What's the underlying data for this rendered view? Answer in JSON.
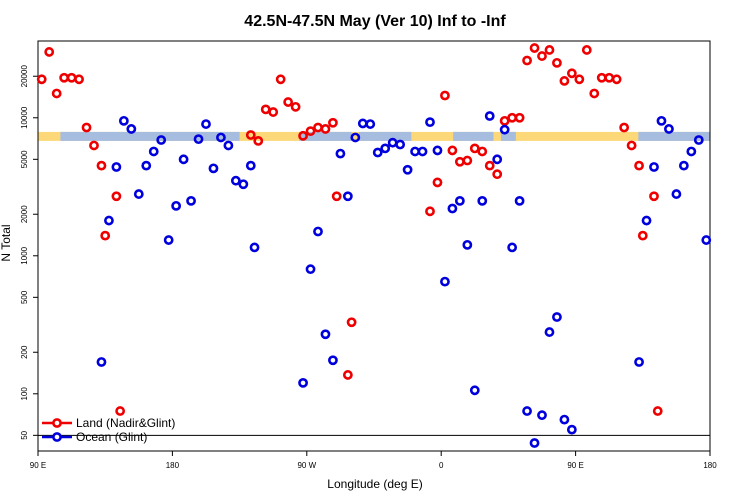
{
  "chart_data": {
    "type": "scatter",
    "title": "42.5N-47.5N May (Ver 10)   Inf to -Inf",
    "xlabel": "Longitude (deg E)",
    "ylabel": "N Total",
    "x_ticks": [
      {
        "value": 90,
        "label": "90 E"
      },
      {
        "value": 180,
        "label": "180"
      },
      {
        "value": 270,
        "label": "90 W"
      },
      {
        "value": 360,
        "label": "0"
      },
      {
        "value": 450,
        "label": "90 E"
      },
      {
        "value": 540,
        "label": "180"
      }
    ],
    "xlim": [
      90,
      540
    ],
    "y_scale": "log",
    "ylim": [
      40,
      40000
    ],
    "y_ticks": [
      50,
      100,
      200,
      500,
      1000,
      2000,
      5000,
      10000,
      20000
    ],
    "colors": {
      "land": "#ee0000",
      "ocean": "#0000dd",
      "band_ocean": "#a7bde0",
      "band_land": "#fdd878",
      "reference_line": "#000000"
    },
    "band": {
      "y_low": 6800,
      "y_high": 7900
    },
    "reference_line_y": 50,
    "legend": {
      "position": "bottom-left",
      "entries": [
        {
          "series": "land",
          "label": "Land (Nadir&Glint)"
        },
        {
          "series": "ocean",
          "label": "Ocean (Glint)"
        }
      ]
    },
    "series": [
      {
        "name": "Land (Nadir&Glint)",
        "key": "land",
        "points": [
          [
            92.5,
            19000
          ],
          [
            97.5,
            30000
          ],
          [
            102.5,
            15000
          ],
          [
            107.5,
            19500
          ],
          [
            112.5,
            19500
          ],
          [
            117.5,
            19000
          ],
          [
            122.5,
            8500
          ],
          [
            127.5,
            6300
          ],
          [
            132.5,
            4500
          ],
          [
            135.0,
            1400
          ],
          [
            142.5,
            2700
          ],
          [
            145.0,
            75
          ],
          [
            232.5,
            7500
          ],
          [
            237.5,
            6800
          ],
          [
            242.5,
            11500
          ],
          [
            247.5,
            11000
          ],
          [
            252.5,
            19000
          ],
          [
            257.5,
            13000
          ],
          [
            262.5,
            12000
          ],
          [
            267.5,
            7400
          ],
          [
            272.5,
            8000
          ],
          [
            277.5,
            8500
          ],
          [
            282.5,
            8300
          ],
          [
            287.5,
            9200
          ],
          [
            290.0,
            2700
          ],
          [
            297.5,
            137
          ],
          [
            300.0,
            330
          ],
          [
            352.5,
            2100
          ],
          [
            357.5,
            3400
          ],
          [
            362.5,
            14500
          ],
          [
            367.5,
            5800
          ],
          [
            372.5,
            4800
          ],
          [
            377.5,
            4900
          ],
          [
            382.5,
            6000
          ],
          [
            387.5,
            5700
          ],
          [
            392.5,
            4500
          ],
          [
            397.5,
            3900
          ],
          [
            402.5,
            9500
          ],
          [
            407.5,
            10000
          ],
          [
            412.5,
            10000
          ],
          [
            417.5,
            26000
          ],
          [
            422.5,
            32000
          ],
          [
            427.5,
            28000
          ],
          [
            432.5,
            31000
          ],
          [
            437.5,
            25000
          ],
          [
            442.5,
            18500
          ],
          [
            447.5,
            21000
          ],
          [
            452.5,
            19000
          ],
          [
            457.5,
            31000
          ],
          [
            462.5,
            15000
          ],
          [
            467.5,
            19500
          ],
          [
            472.5,
            19500
          ],
          [
            477.5,
            19000
          ],
          [
            482.5,
            8500
          ],
          [
            487.5,
            6300
          ],
          [
            492.5,
            4500
          ],
          [
            495.0,
            1400
          ],
          [
            502.5,
            2700
          ],
          [
            505.0,
            75
          ]
        ]
      },
      {
        "name": "Ocean (Glint)",
        "key": "ocean",
        "points": [
          [
            132.5,
            170
          ],
          [
            137.5,
            1800
          ],
          [
            142.5,
            4400
          ],
          [
            147.5,
            9500
          ],
          [
            152.5,
            8300
          ],
          [
            157.5,
            2800
          ],
          [
            162.5,
            4500
          ],
          [
            167.5,
            5700
          ],
          [
            172.5,
            6900
          ],
          [
            177.5,
            1300
          ],
          [
            182.5,
            2300
          ],
          [
            187.5,
            5000
          ],
          [
            192.5,
            2500
          ],
          [
            197.5,
            7000
          ],
          [
            202.5,
            9000
          ],
          [
            207.5,
            4300
          ],
          [
            212.5,
            7200
          ],
          [
            217.5,
            6300
          ],
          [
            222.5,
            3500
          ],
          [
            227.5,
            3300
          ],
          [
            232.5,
            4500
          ],
          [
            235.0,
            1150
          ],
          [
            267.5,
            120
          ],
          [
            272.5,
            800
          ],
          [
            277.5,
            1500
          ],
          [
            282.5,
            270
          ],
          [
            287.5,
            175
          ],
          [
            292.5,
            5500
          ],
          [
            297.5,
            2700
          ],
          [
            302.5,
            7200
          ],
          [
            307.5,
            9100
          ],
          [
            312.5,
            9000
          ],
          [
            317.5,
            5600
          ],
          [
            322.5,
            6000
          ],
          [
            327.5,
            6600
          ],
          [
            332.5,
            6400
          ],
          [
            337.5,
            4200
          ],
          [
            342.5,
            5700
          ],
          [
            347.5,
            5700
          ],
          [
            352.5,
            9300
          ],
          [
            357.5,
            5800
          ],
          [
            362.5,
            650
          ],
          [
            367.5,
            2200
          ],
          [
            372.5,
            2500
          ],
          [
            377.5,
            1200
          ],
          [
            382.5,
            106
          ],
          [
            387.5,
            2500
          ],
          [
            392.5,
            10300
          ],
          [
            397.5,
            5000
          ],
          [
            402.5,
            8200
          ],
          [
            407.5,
            1150
          ],
          [
            412.5,
            2500
          ],
          [
            417.5,
            75
          ],
          [
            422.5,
            44
          ],
          [
            427.5,
            70
          ],
          [
            432.5,
            280
          ],
          [
            437.5,
            360
          ],
          [
            442.5,
            65
          ],
          [
            447.5,
            55
          ],
          [
            492.5,
            170
          ],
          [
            497.5,
            1800
          ],
          [
            502.5,
            4400
          ],
          [
            507.5,
            9500
          ],
          [
            512.5,
            8300
          ],
          [
            517.5,
            2800
          ],
          [
            522.5,
            4500
          ],
          [
            527.5,
            5700
          ],
          [
            532.5,
            6900
          ],
          [
            537.5,
            1300
          ]
        ]
      }
    ]
  }
}
